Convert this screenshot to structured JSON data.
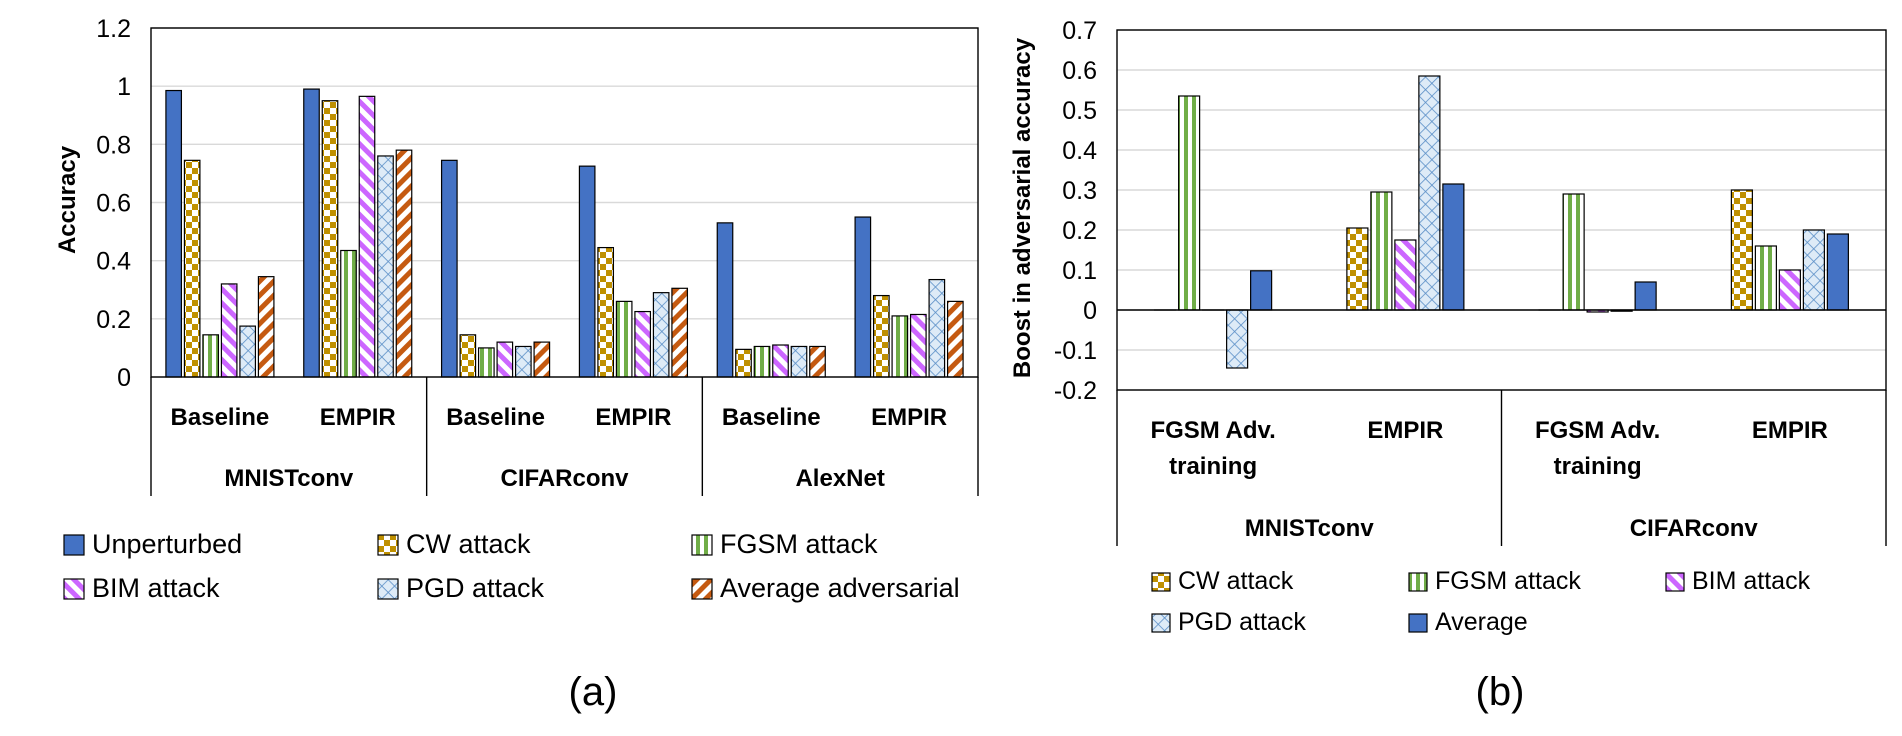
{
  "colors": {
    "unperturbed": "#4472C4",
    "cw": "#BF9000",
    "fgsm": "#70AD47",
    "bim": "#CC66FF",
    "pgd": "#9DC3E6",
    "avgadv": "#C55A11",
    "average": "#4472C4"
  },
  "chart_data": [
    {
      "type": "bar",
      "panel_label": "(a)",
      "ylabel": "Accuracy",
      "ylim": [
        0,
        1.2
      ],
      "yticks": [
        "0",
        "0.2",
        "0.4",
        "0.6",
        "0.8",
        "1",
        "1.2"
      ],
      "grid": true,
      "legend_position": "bottom",
      "groups": [
        "MNISTconv",
        "CIFARconv",
        "AlexNet"
      ],
      "categories": [
        "Baseline",
        "EMPIR",
        "Baseline",
        "EMPIR",
        "Baseline",
        "EMPIR"
      ],
      "series": [
        {
          "name": "Unperturbed",
          "pattern": "solid",
          "values": [
            0.985,
            0.99,
            0.745,
            0.725,
            0.53,
            0.55
          ]
        },
        {
          "name": "CW attack",
          "pattern": "checker",
          "values": [
            0.745,
            0.95,
            0.145,
            0.445,
            0.095,
            0.28
          ]
        },
        {
          "name": "FGSM attack",
          "pattern": "vstripe",
          "values": [
            0.145,
            0.435,
            0.1,
            0.26,
            0.105,
            0.21
          ]
        },
        {
          "name": "BIM attack",
          "pattern": "diagdown",
          "values": [
            0.32,
            0.965,
            0.12,
            0.225,
            0.11,
            0.215
          ]
        },
        {
          "name": "PGD attack",
          "pattern": "crosshatch",
          "values": [
            0.175,
            0.76,
            0.105,
            0.29,
            0.105,
            0.335
          ]
        },
        {
          "name": "Average adversarial",
          "pattern": "diagup",
          "values": [
            0.345,
            0.78,
            0.12,
            0.305,
            0.105,
            0.26
          ]
        }
      ]
    },
    {
      "type": "bar",
      "panel_label": "(b)",
      "ylabel": "Boost in adversarial accuracy",
      "ylim": [
        -0.2,
        0.7
      ],
      "yticks": [
        "-0.2",
        "-0.1",
        "0",
        "0.1",
        "0.2",
        "0.3",
        "0.4",
        "0.5",
        "0.6",
        "0.7"
      ],
      "grid": true,
      "legend_position": "bottom",
      "groups": [
        "MNISTconv",
        "CIFARconv"
      ],
      "categories": [
        "FGSM Adv. training",
        "EMPIR",
        "FGSM Adv. training",
        "EMPIR"
      ],
      "series": [
        {
          "name": "CW attack",
          "pattern": "checker",
          "values": [
            0,
            0.205,
            0,
            0.3
          ]
        },
        {
          "name": "FGSM attack",
          "pattern": "vstripe",
          "values": [
            0.535,
            0.295,
            0.29,
            0.16
          ]
        },
        {
          "name": "BIM attack",
          "pattern": "diagdown",
          "values": [
            0,
            0.175,
            -0.005,
            0.1
          ]
        },
        {
          "name": "PGD attack",
          "pattern": "crosshatch",
          "values": [
            -0.145,
            0.585,
            -0.003,
            0.2
          ]
        },
        {
          "name": "Average",
          "pattern": "solid",
          "values": [
            0.098,
            0.315,
            0.07,
            0.19
          ]
        }
      ]
    }
  ]
}
